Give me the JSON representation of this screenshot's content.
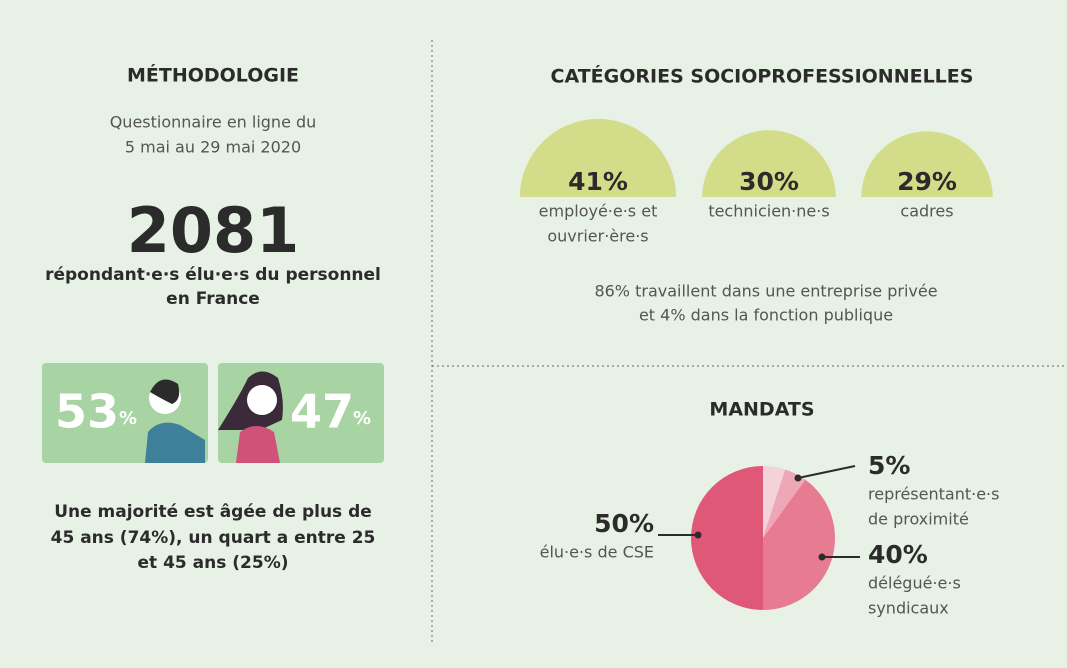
{
  "methodology": {
    "title": "MÉTHODOLOGIE",
    "period": [
      "Questionnaire en ligne du",
      "5 mai au 29 mai 2020"
    ],
    "respondents": "2081",
    "respondents_text": [
      "répondant·e·s élu·e·s du personnel",
      "en France"
    ],
    "gender": [
      {
        "value": "53",
        "unit": "%",
        "color": "#a8d3a2"
      },
      {
        "value": "47",
        "unit": "%",
        "color": "#a8d3a2"
      }
    ],
    "age_text": [
      "Une majorité est âgée de plus de",
      "45 ans (74%), un quart a entre 25",
      "et 45 ans (25%)"
    ]
  },
  "categories": {
    "title": "CATÉGORIES SOCIOPROFESSIONNELLES",
    "color": "#d3dc88",
    "items": [
      {
        "share": {
          "value": 41,
          "label": "41%"
        },
        "label": [
          "employé·e·s et",
          "ouvrier·ère·s"
        ]
      },
      {
        "share": {
          "value": 30,
          "label": "30%"
        },
        "label": [
          "technicien·ne·s"
        ]
      },
      {
        "share": {
          "value": 29,
          "label": "29%"
        },
        "label": [
          "cadres"
        ]
      }
    ],
    "note": [
      "86% travaillent dans une entreprise privée",
      "et 4% dans la fonction publique"
    ]
  },
  "mandates": {
    "title": "MANDATS",
    "slices": [
      {
        "share": {
          "value": 50,
          "label": "50%"
        },
        "label": [
          "élu·e·s de CSE"
        ],
        "color": "#df5878"
      },
      {
        "share": {
          "value": 40,
          "label": "40%"
        },
        "label": [
          "délégué·e·s",
          "syndicaux"
        ],
        "color": "#e67b92"
      },
      {
        "share": {
          "value": 5,
          "label": "5%"
        },
        "label": [
          "représentant·e·s",
          "de proximité"
        ],
        "color": "#eda7b6"
      }
    ]
  }
}
